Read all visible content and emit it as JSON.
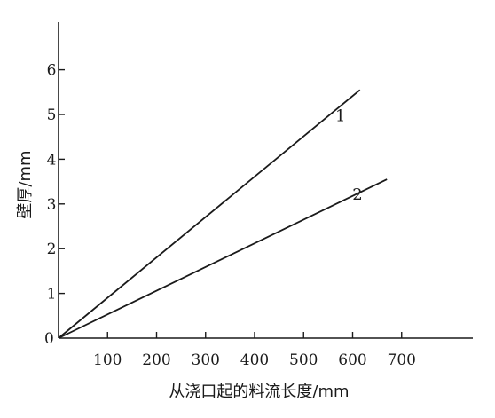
{
  "chart_data": {
    "type": "line",
    "title": "",
    "xlabel": "从浇口起的料流长度/mm",
    "ylabel": "壁厚/mm",
    "xlim": [
      0,
      730
    ],
    "ylim": [
      0,
      7.2
    ],
    "x_ticks": [
      100,
      200,
      300,
      400,
      500,
      600,
      700
    ],
    "y_ticks": [
      1,
      2,
      3,
      4,
      5,
      6
    ],
    "origin_label": "0",
    "grid": false,
    "legend": "none",
    "series": [
      {
        "name": "1",
        "x": [
          0,
          615
        ],
        "y": [
          0,
          5.55
        ],
        "label_at": [
          575,
          4.85
        ],
        "color": "#1a1a1a"
      },
      {
        "name": "2",
        "x": [
          0,
          670
        ],
        "y": [
          0,
          3.55
        ],
        "label_at": [
          610,
          3.1
        ],
        "color": "#1a1a1a"
      }
    ]
  }
}
